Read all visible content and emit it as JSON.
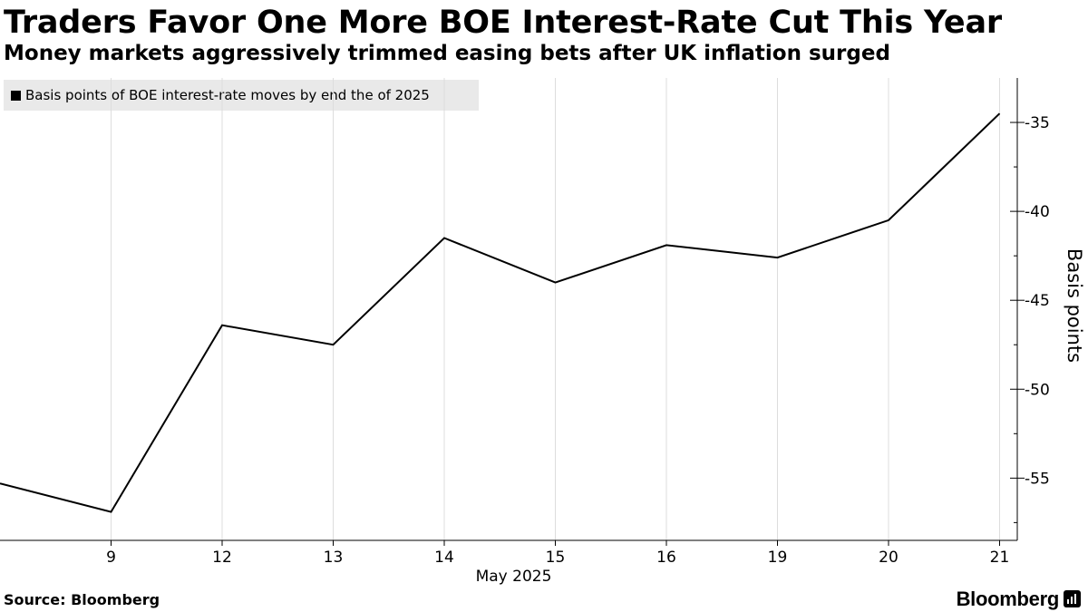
{
  "header": {
    "title": "Traders Favor One More BOE Interest-Rate Cut This Year",
    "subtitle": "Money markets aggressively trimmed easing bets after UK inflation surged"
  },
  "legend": {
    "label": "Basis points of BOE interest-rate moves by end the of 2025"
  },
  "footer": {
    "source": "Source: Bloomberg",
    "brand": "Bloomberg"
  },
  "icons": {
    "legend": "legend-swatch-icon",
    "brand": "bloomberg-terminal-icon"
  },
  "colors": {
    "line": "#000000",
    "grid": "#dddddd",
    "legend_bg": "#e9e9e9"
  },
  "chart_data": {
    "type": "line",
    "title": "Traders Favor One More BOE Interest-Rate Cut This Year",
    "subtitle": "Money markets aggressively trimmed easing bets after UK inflation surged",
    "xlabel": "May 2025",
    "ylabel": "Basis points",
    "categories": [
      "8",
      "9",
      "12",
      "13",
      "14",
      "15",
      "16",
      "19",
      "20",
      "21"
    ],
    "x_tick_labels": [
      "9",
      "12",
      "13",
      "14",
      "15",
      "16",
      "19",
      "20",
      "21"
    ],
    "series": [
      {
        "name": "Basis points of BOE interest-rate moves by end the of 2025",
        "values": [
          -55.3,
          -56.9,
          -46.4,
          -47.5,
          -41.5,
          -44.0,
          -41.9,
          -42.6,
          -40.5,
          -34.5
        ]
      }
    ],
    "y_ticks": [
      -35,
      -40,
      -45,
      -50,
      -55
    ],
    "ylim": [
      -58.5,
      -32.5
    ],
    "y_axis_position": "right",
    "grid": "vertical",
    "legend_position": "top-left"
  }
}
